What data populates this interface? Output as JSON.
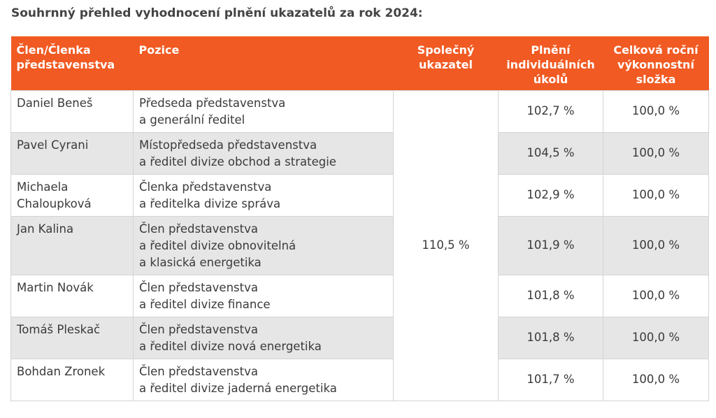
{
  "title": "Souhrnný přehled vyhodnocení plnění ukazatelů za rok 2024:",
  "headers": {
    "member": [
      "Člen/Členka",
      "představenstva"
    ],
    "position": [
      "Pozice"
    ],
    "shared": [
      "Společný",
      "ukazatel"
    ],
    "individual": [
      "Plnění",
      "individuálních",
      "úkolů"
    ],
    "total": [
      "Celková roční",
      "výkonnostní",
      "složka"
    ]
  },
  "shared_value": "110,5 %",
  "colors": {
    "header_bg": "#f15a22",
    "row_alt_bg": "#e6e6e6"
  },
  "rows": [
    {
      "name": [
        "Daniel Beneš"
      ],
      "position": [
        "Předseda představenstva",
        "a generální ředitel"
      ],
      "individual": "102,7 %",
      "total": "100,0 %"
    },
    {
      "name": [
        "Pavel Cyrani"
      ],
      "position": [
        "Místopředseda představenstva",
        "a ředitel divize obchod a strategie"
      ],
      "individual": "104,5 %",
      "total": "100,0 %"
    },
    {
      "name": [
        "Michaela",
        "Chaloupková"
      ],
      "position": [
        "Členka představenstva",
        "a ředitelka divize správa"
      ],
      "individual": "102,9 %",
      "total": "100,0 %"
    },
    {
      "name": [
        "Jan Kalina"
      ],
      "position": [
        "Člen představenstva",
        "a ředitel divize obnovitelná",
        "a klasická energetika"
      ],
      "individual": "101,9 %",
      "total": "100,0 %"
    },
    {
      "name": [
        "Martin Novák"
      ],
      "position": [
        "Člen představenstva",
        "a ředitel divize finance"
      ],
      "individual": "101,8 %",
      "total": "100,0 %"
    },
    {
      "name": [
        "Tomáš Pleskač"
      ],
      "position": [
        "Člen představenstva",
        "a ředitel divize nová energetika"
      ],
      "individual": "101,8 %",
      "total": "100,0 %"
    },
    {
      "name": [
        "Bohdan Zronek"
      ],
      "position": [
        "Člen představenstva",
        "a ředitel divize jaderná energetika"
      ],
      "individual": "101,7 %",
      "total": "100,0 %"
    }
  ]
}
